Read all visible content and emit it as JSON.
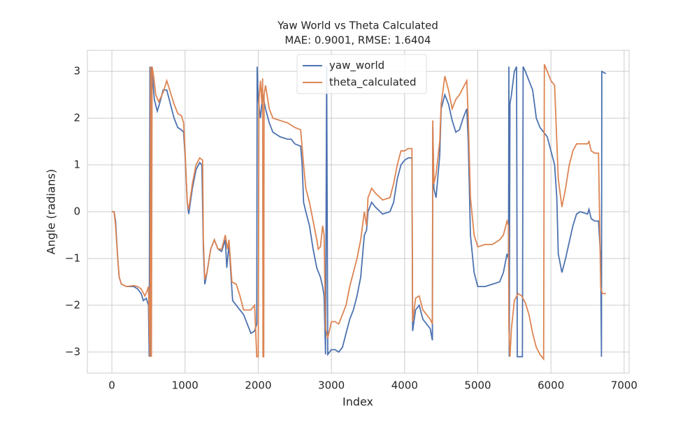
{
  "chart_data": {
    "type": "line",
    "title": "Yaw World vs Theta Calculated",
    "subtitle": "MAE: 0.9001, RMSE: 1.6404",
    "x_label": "Index",
    "y_label": "Angle (radians)",
    "xlim": [
      -335,
      7068
    ],
    "ylim": [
      -3.45,
      3.45
    ],
    "xticks": [
      0,
      1000,
      2000,
      3000,
      4000,
      5000,
      6000,
      7000
    ],
    "yticks": [
      {
        "value": -3,
        "label": "−3"
      },
      {
        "value": -2,
        "label": "−2"
      },
      {
        "value": -1,
        "label": "−1"
      },
      0,
      1,
      2,
      3
    ],
    "grid": true,
    "legend": "upper center",
    "series": [
      {
        "name": "yaw_world",
        "color": "#4c72b0",
        "x": [
          0,
          30,
          50,
          80,
          100,
          130,
          200,
          300,
          350,
          400,
          430,
          470,
          500,
          510,
          520,
          530,
          540,
          560,
          580,
          620,
          650,
          700,
          750,
          800,
          850,
          900,
          950,
          980,
          1000,
          1030,
          1050,
          1100,
          1150,
          1200,
          1230,
          1250,
          1270,
          1300,
          1350,
          1400,
          1450,
          1500,
          1550,
          1570,
          1600,
          1650,
          1700,
          1800,
          1850,
          1900,
          1950,
          1980,
          1985,
          2000,
          2030,
          2060,
          2100,
          2150,
          2200,
          2300,
          2400,
          2450,
          2500,
          2580,
          2600,
          2620,
          2650,
          2700,
          2750,
          2800,
          2850,
          2880,
          2900,
          2920,
          2935,
          2950,
          3000,
          3050,
          3100,
          3150,
          3200,
          3250,
          3300,
          3350,
          3400,
          3450,
          3480,
          3500,
          3550,
          3600,
          3700,
          3800,
          3850,
          3900,
          3950,
          4000,
          4050,
          4100,
          4110,
          4150,
          4200,
          4250,
          4300,
          4350,
          4380,
          4385,
          4400,
          4430,
          4480,
          4500,
          4550,
          4600,
          4650,
          4700,
          4750,
          4800,
          4850,
          4870,
          4900,
          4950,
          5000,
          5100,
          5200,
          5300,
          5350,
          5400,
          5420,
          5425,
          5430,
          5440,
          5460,
          5500,
          5530,
          5540,
          5560,
          5610,
          5620,
          5650,
          5700,
          5750,
          5800,
          5850,
          5900,
          5950,
          6000,
          6050,
          6080,
          6100,
          6150,
          6200,
          6300,
          6350,
          6400,
          6500,
          6520,
          6550,
          6600,
          6650,
          6680,
          6690,
          6695,
          6750
        ],
        "values": [
          0,
          0,
          -0.2,
          -1.0,
          -1.4,
          -1.55,
          -1.6,
          -1.6,
          -1.65,
          -1.75,
          -1.9,
          -1.85,
          -2.0,
          -3.1,
          3.1,
          -3.1,
          3.1,
          2.8,
          2.4,
          2.15,
          2.3,
          2.6,
          2.6,
          2.3,
          2.0,
          1.8,
          1.75,
          1.7,
          1.2,
          0.2,
          -0.05,
          0.5,
          0.9,
          1.05,
          1.0,
          -0.8,
          -1.55,
          -1.3,
          -0.8,
          -0.6,
          -0.8,
          -0.85,
          -0.6,
          -1.2,
          -0.7,
          -1.9,
          -2.0,
          -2.2,
          -2.4,
          -2.6,
          -2.55,
          -2.4,
          3.1,
          2.4,
          2.0,
          2.5,
          2.2,
          1.9,
          1.7,
          1.6,
          1.55,
          1.55,
          1.45,
          1.4,
          1.0,
          0.2,
          0.0,
          -0.3,
          -0.8,
          -1.2,
          -1.4,
          -1.6,
          -1.8,
          -3.05,
          3.1,
          -3.05,
          -2.95,
          -2.95,
          -3.0,
          -2.9,
          -2.6,
          -2.3,
          -2.1,
          -1.8,
          -1.4,
          -0.5,
          -0.4,
          0.0,
          0.2,
          0.1,
          -0.05,
          0.0,
          0.2,
          0.7,
          1.0,
          1.1,
          1.15,
          1.15,
          -2.55,
          -2.1,
          -2.0,
          -2.3,
          -2.4,
          -2.5,
          -2.75,
          1.8,
          0.5,
          0.3,
          1.2,
          2.2,
          2.5,
          2.3,
          1.95,
          1.7,
          1.75,
          2.0,
          2.2,
          1.5,
          -0.5,
          -1.3,
          -1.6,
          -1.6,
          -1.55,
          -1.5,
          -1.3,
          -0.9,
          -1.0,
          3.1,
          -3.1,
          2.3,
          2.5,
          3.0,
          3.1,
          -3.1,
          -3.1,
          -3.1,
          3.1,
          3.0,
          2.8,
          2.6,
          2.0,
          1.8,
          1.7,
          1.6,
          1.3,
          1.0,
          0.3,
          -0.9,
          -1.3,
          -1.0,
          -0.3,
          -0.05,
          0.0,
          -0.05,
          0.05,
          -0.15,
          -0.2,
          -0.2,
          -1.0,
          -3.1,
          3.0,
          2.95
        ]
      },
      {
        "name": "theta_calculated",
        "color": "#dd8452",
        "x": [
          0,
          30,
          50,
          80,
          100,
          130,
          200,
          300,
          350,
          400,
          450,
          480,
          500,
          520,
          530,
          540,
          550,
          570,
          600,
          640,
          700,
          750,
          800,
          850,
          900,
          950,
          980,
          1000,
          1030,
          1050,
          1100,
          1150,
          1200,
          1240,
          1250,
          1270,
          1300,
          1350,
          1400,
          1450,
          1500,
          1550,
          1580,
          1600,
          1640,
          1700,
          1750,
          1800,
          1850,
          1900,
          1950,
          1980,
          2000,
          2010,
          2030,
          2050,
          2060,
          2065,
          2075,
          2080,
          2100,
          2150,
          2200,
          2300,
          2400,
          2450,
          2500,
          2580,
          2620,
          2650,
          2700,
          2750,
          2800,
          2820,
          2850,
          2880,
          2900,
          2920,
          2950,
          3000,
          3050,
          3100,
          3150,
          3200,
          3250,
          3300,
          3350,
          3400,
          3450,
          3480,
          3500,
          3550,
          3600,
          3700,
          3800,
          3850,
          3900,
          3950,
          4000,
          4050,
          4100,
          4110,
          4150,
          4200,
          4250,
          4300,
          4350,
          4380,
          4385,
          4400,
          4430,
          4480,
          4500,
          4550,
          4600,
          4650,
          4700,
          4750,
          4800,
          4850,
          4870,
          4900,
          4950,
          5000,
          5100,
          5200,
          5300,
          5350,
          5400,
          5420,
          5425,
          5440,
          5460,
          5500,
          5550,
          5600,
          5650,
          5700,
          5750,
          5800,
          5850,
          5900,
          5910,
          5950,
          6000,
          6050,
          6080,
          6100,
          6150,
          6200,
          6250,
          6300,
          6350,
          6400,
          6500,
          6520,
          6550,
          6600,
          6650,
          6680,
          6700,
          6750
        ],
        "values": [
          0,
          0,
          -0.3,
          -1.0,
          -1.4,
          -1.55,
          -1.6,
          -1.58,
          -1.6,
          -1.65,
          -1.8,
          -1.7,
          -1.6,
          -3.1,
          3.1,
          -3.1,
          3.1,
          2.9,
          2.5,
          2.35,
          2.55,
          2.8,
          2.55,
          2.3,
          2.1,
          2.05,
          1.9,
          1.3,
          0.2,
          0.05,
          0.6,
          1.0,
          1.15,
          1.1,
          -0.6,
          -1.45,
          -1.3,
          -0.8,
          -0.6,
          -0.8,
          -0.8,
          -0.5,
          -0.8,
          -0.6,
          -1.5,
          -1.55,
          -1.8,
          -2.1,
          -2.1,
          -2.1,
          -2.0,
          -3.1,
          -3.1,
          2.4,
          2.8,
          2.3,
          2.85,
          -3.1,
          -3.1,
          2.5,
          2.7,
          2.2,
          2.0,
          1.95,
          1.9,
          1.85,
          1.8,
          1.75,
          1.0,
          0.5,
          0.2,
          -0.2,
          -0.6,
          -0.8,
          -0.75,
          -0.3,
          -0.5,
          -2.5,
          -2.7,
          -2.35,
          -2.35,
          -2.4,
          -2.2,
          -2.0,
          -1.6,
          -1.3,
          -1.0,
          -0.6,
          0.0,
          -0.3,
          0.3,
          0.5,
          0.4,
          0.25,
          0.3,
          0.6,
          1.0,
          1.3,
          1.3,
          1.35,
          1.35,
          -2.35,
          -1.85,
          -1.8,
          -2.1,
          -2.2,
          -2.3,
          -2.4,
          1.95,
          0.6,
          0.8,
          1.5,
          2.3,
          2.9,
          2.6,
          2.2,
          2.4,
          2.5,
          2.65,
          2.8,
          2.0,
          0.3,
          -0.5,
          -0.75,
          -0.7,
          -0.7,
          -0.6,
          -0.5,
          -0.2,
          -0.3,
          -2.5,
          -3.1,
          -2.5,
          -1.9,
          -1.75,
          -1.8,
          -1.95,
          -2.2,
          -2.6,
          -2.9,
          -3.05,
          -3.15,
          3.15,
          3.0,
          2.8,
          2.7,
          1.5,
          0.7,
          0.1,
          0.5,
          1.0,
          1.3,
          1.45,
          1.45,
          1.45,
          1.5,
          1.3,
          1.25,
          1.25,
          -1.6,
          -1.75,
          -1.75
        ]
      }
    ]
  }
}
